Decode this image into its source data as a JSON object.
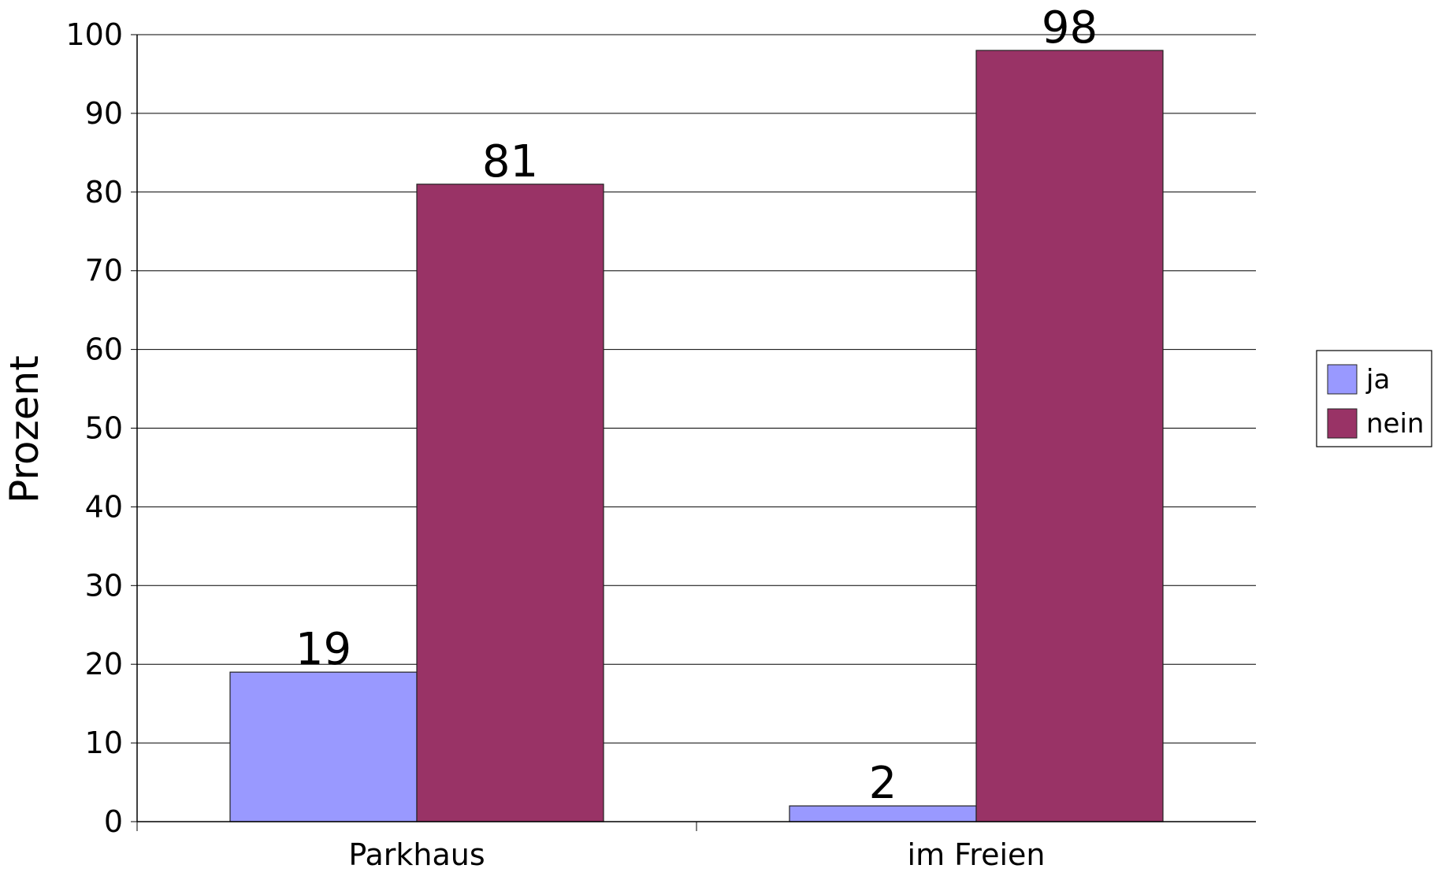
{
  "chart_data": {
    "type": "bar",
    "categories": [
      "Parkhaus",
      "im Freien"
    ],
    "series": [
      {
        "name": "ja",
        "values": [
          19,
          2
        ],
        "color": "#9999ff"
      },
      {
        "name": "nein",
        "values": [
          81,
          98
        ],
        "color": "#993366"
      }
    ],
    "title": "",
    "xlabel": "",
    "ylabel": "Prozent",
    "ylim": [
      0,
      100
    ],
    "yticks": [
      0,
      10,
      20,
      30,
      40,
      50,
      60,
      70,
      80,
      90,
      100
    ],
    "grid": true,
    "legend_position": "right",
    "data_labels": true
  }
}
